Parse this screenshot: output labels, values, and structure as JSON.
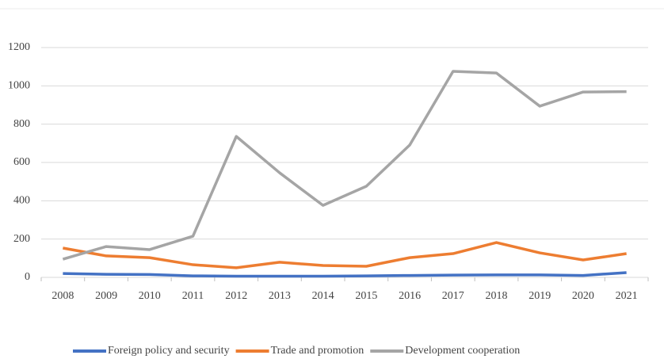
{
  "chart_data": {
    "type": "line",
    "categories": [
      "2008",
      "2009",
      "2010",
      "2011",
      "2012",
      "2013",
      "2014",
      "2015",
      "2016",
      "2017",
      "2018",
      "2019",
      "2020",
      "2021"
    ],
    "series": [
      {
        "name": "Foreign policy and security",
        "color": "#4472c4",
        "values": [
          20,
          16,
          15,
          8,
          6,
          6,
          6,
          8,
          10,
          12,
          13,
          13,
          10,
          25
        ]
      },
      {
        "name": "Trade and promotion",
        "color": "#ed7d31",
        "values": [
          153,
          112,
          103,
          66,
          50,
          79,
          62,
          58,
          103,
          124,
          182,
          128,
          91,
          124
        ]
      },
      {
        "name": "Development cooperation",
        "color": "#a5a5a5",
        "values": [
          95,
          161,
          145,
          215,
          736,
          546,
          376,
          476,
          691,
          1076,
          1067,
          894,
          968,
          970
        ]
      }
    ],
    "ylim": [
      0,
      1200
    ],
    "yticks": [
      0,
      200,
      400,
      600,
      800,
      1000,
      1200
    ],
    "grid": true,
    "legend": "bottom"
  }
}
